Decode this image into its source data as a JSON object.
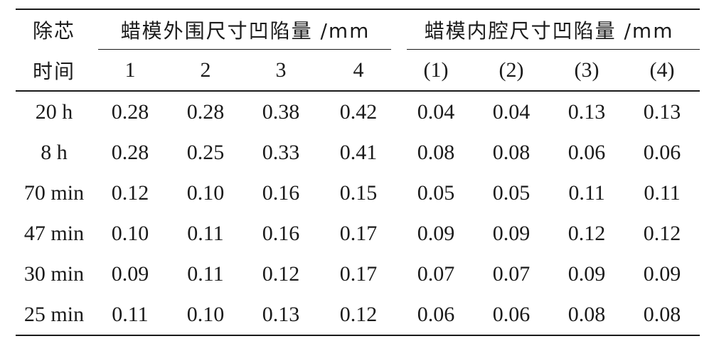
{
  "table": {
    "header_row1": {
      "col0": "除芯",
      "group1": "蜡模外围尺寸凹陷量 /mm",
      "group2": "蜡模内腔尺寸凹陷量 /mm"
    },
    "header_row2": [
      "时间",
      "1",
      "2",
      "3",
      "4",
      "(1)",
      "(2)",
      "(3)",
      "(4)"
    ],
    "rows": [
      [
        "20 h",
        "0.28",
        "0.28",
        "0.38",
        "0.42",
        "0.04",
        "0.04",
        "0.13",
        "0.13"
      ],
      [
        "8 h",
        "0.28",
        "0.25",
        "0.33",
        "0.41",
        "0.08",
        "0.08",
        "0.06",
        "0.06"
      ],
      [
        "70 min",
        "0.12",
        "0.10",
        "0.16",
        "0.15",
        "0.05",
        "0.05",
        "0.11",
        "0.11"
      ],
      [
        "47 min",
        "0.10",
        "0.11",
        "0.16",
        "0.17",
        "0.09",
        "0.09",
        "0.12",
        "0.12"
      ],
      [
        "30 min",
        "0.09",
        "0.11",
        "0.12",
        "0.17",
        "0.07",
        "0.07",
        "0.09",
        "0.09"
      ],
      [
        "25 min",
        "0.11",
        "0.10",
        "0.13",
        "0.12",
        "0.06",
        "0.06",
        "0.08",
        "0.08"
      ]
    ]
  }
}
